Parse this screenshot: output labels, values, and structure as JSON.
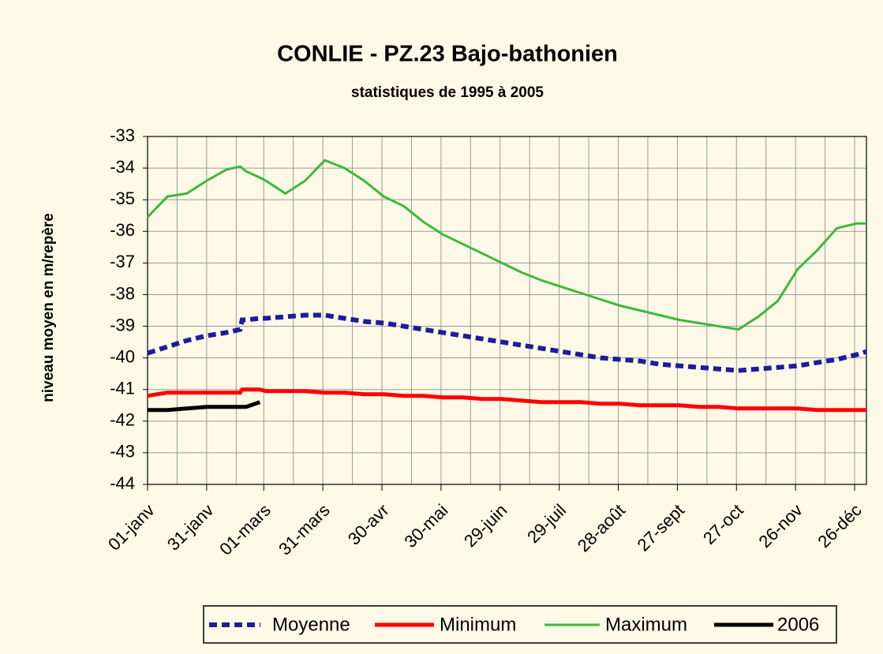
{
  "chart_data": {
    "type": "line",
    "title": "CONLIE - PZ.23 Bajo-bathonien",
    "subtitle": "statistiques de 1995 à 2005",
    "y_label": "niveau moyen en m/repère",
    "x": [
      0,
      10,
      20,
      30,
      40,
      47,
      48,
      50,
      57,
      60,
      70,
      80,
      90,
      100,
      110,
      120,
      130,
      140,
      150,
      160,
      170,
      180,
      190,
      200,
      210,
      220,
      230,
      240,
      250,
      260,
      270,
      280,
      290,
      300,
      310,
      320,
      330,
      340,
      350,
      360,
      365
    ],
    "xlim": [
      0,
      365
    ],
    "xticks": [
      {
        "value": 0,
        "label": "01-janv"
      },
      {
        "value": 30,
        "label": "31-janv"
      },
      {
        "value": 59,
        "label": "01-mars"
      },
      {
        "value": 89,
        "label": "31-mars"
      },
      {
        "value": 119,
        "label": "30-avr"
      },
      {
        "value": 149,
        "label": "30-mai"
      },
      {
        "value": 179,
        "label": "29-juin"
      },
      {
        "value": 209,
        "label": "29-juil"
      },
      {
        "value": 239,
        "label": "28-août"
      },
      {
        "value": 269,
        "label": "27-sept"
      },
      {
        "value": 299,
        "label": "27-oct"
      },
      {
        "value": 329,
        "label": "26-nov"
      },
      {
        "value": 359,
        "label": "26-déc"
      }
    ],
    "x_minor_grid": [
      15,
      45,
      74,
      104,
      134,
      164,
      194,
      224,
      254,
      284,
      314,
      344
    ],
    "ylim": [
      -44,
      -33
    ],
    "yticks": [
      -33,
      -34,
      -35,
      -36,
      -37,
      -38,
      -39,
      -40,
      -41,
      -42,
      -43,
      -44
    ],
    "grid": true,
    "legend": "bottom",
    "series": [
      {
        "name": "Moyenne",
        "color": "#1c1c9e",
        "dashed": true,
        "values": [
          -39.85,
          -39.65,
          -39.45,
          -39.3,
          -39.2,
          -39.1,
          -38.8,
          -38.8,
          -38.75,
          -38.75,
          -38.7,
          -38.65,
          -38.65,
          -38.75,
          -38.85,
          -38.9,
          -39.0,
          -39.1,
          -39.2,
          -39.3,
          -39.4,
          -39.5,
          -39.6,
          -39.7,
          -39.8,
          -39.9,
          -40.0,
          -40.05,
          -40.1,
          -40.2,
          -40.25,
          -40.3,
          -40.35,
          -40.4,
          -40.35,
          -40.3,
          -40.25,
          -40.15,
          -40.05,
          -39.9,
          -39.8
        ]
      },
      {
        "name": "Minimum",
        "color": "#ff0000",
        "dashed": false,
        "values": [
          -41.2,
          -41.1,
          -41.1,
          -41.1,
          -41.1,
          -41.1,
          -41.0,
          -41.0,
          -41.0,
          -41.05,
          -41.05,
          -41.05,
          -41.1,
          -41.1,
          -41.15,
          -41.15,
          -41.2,
          -41.2,
          -41.25,
          -41.25,
          -41.3,
          -41.3,
          -41.35,
          -41.4,
          -41.4,
          -41.4,
          -41.45,
          -41.45,
          -41.5,
          -41.5,
          -41.5,
          -41.55,
          -41.55,
          -41.6,
          -41.6,
          -41.6,
          -41.6,
          -41.65,
          -41.65,
          -41.65,
          -41.65
        ]
      },
      {
        "name": "Maximum",
        "color": "#3cb83c",
        "dashed": false,
        "values": [
          -35.55,
          -34.9,
          -34.8,
          -34.4,
          -34.05,
          -33.95,
          -34.0,
          -34.1,
          -34.3,
          -34.4,
          -34.8,
          -34.4,
          -33.75,
          -34.0,
          -34.4,
          -34.9,
          -35.2,
          -35.7,
          -36.1,
          -36.4,
          -36.7,
          -37.0,
          -37.3,
          -37.55,
          -37.75,
          -37.95,
          -38.15,
          -38.35,
          -38.5,
          -38.65,
          -38.8,
          -38.9,
          -39.0,
          -39.1,
          -38.7,
          -38.2,
          -37.2,
          -36.6,
          -35.9,
          -35.75,
          -35.75
        ]
      },
      {
        "name": "2006",
        "color": "#000000",
        "dashed": false,
        "values": [
          -41.65,
          -41.65,
          -41.6,
          -41.55,
          -41.55,
          -41.55,
          -41.55,
          -41.55,
          -41.4,
          null,
          null,
          null,
          null,
          null,
          null,
          null,
          null,
          null,
          null,
          null,
          null,
          null,
          null,
          null,
          null,
          null,
          null,
          null,
          null,
          null,
          null,
          null,
          null,
          null,
          null,
          null,
          null,
          null,
          null,
          null,
          null
        ]
      }
    ]
  }
}
